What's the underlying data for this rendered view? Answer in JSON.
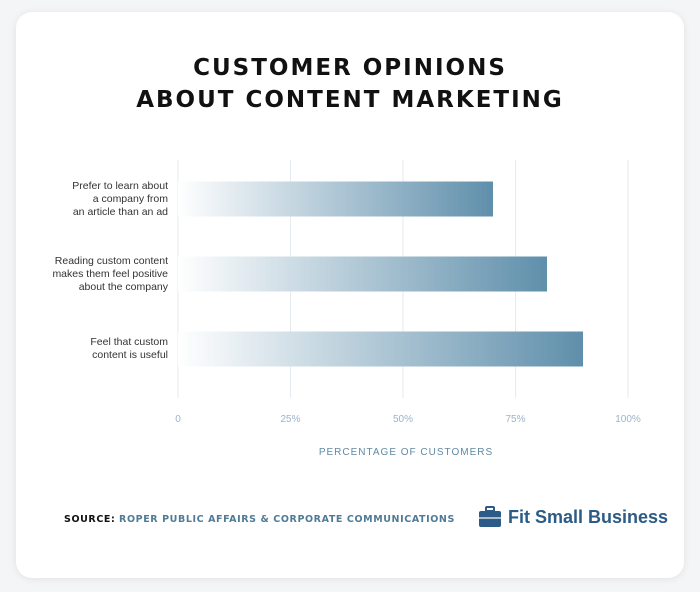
{
  "chart_data": {
    "type": "bar",
    "orientation": "horizontal",
    "title": [
      "CUSTOMER OPINIONS",
      "ABOUT CONTENT MARKETING"
    ],
    "categories": [
      "Prefer to learn about a company from an article than an ad",
      "Reading custom content makes them feel positive about the company",
      "Feel that custom content is useful"
    ],
    "category_lines": [
      [
        "Prefer to learn about",
        "a company from",
        "an article than an ad"
      ],
      [
        "Reading custom content",
        "makes them feel positive",
        "about the company"
      ],
      [
        "Feel that custom",
        "content is useful"
      ]
    ],
    "values": [
      70,
      82,
      90
    ],
    "xlabel": "PERCENTAGE OF CUSTOMERS",
    "xlim": [
      0,
      100
    ],
    "xticks": [
      "0",
      "25%",
      "50%",
      "75%",
      "100%"
    ],
    "grid": true,
    "colors": {
      "bar_start": "#ffffff",
      "bar_end": "#5f8fab",
      "grid": "#e6ebef"
    }
  },
  "footer": {
    "source_lead": "SOURCE:",
    "source_org": "ROPER PUBLIC AFFAIRS & CORPORATE COMMUNICATIONS"
  },
  "brand": {
    "name": "Fit Small Business",
    "icon": "briefcase-icon"
  }
}
